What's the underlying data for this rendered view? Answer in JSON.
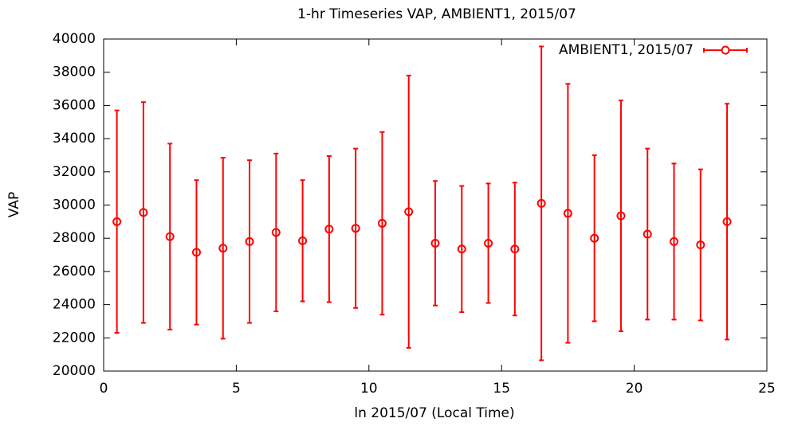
{
  "chart_data": {
    "type": "errorbar",
    "title": "1-hr Timeseries VAP, AMBIENT1, 2015/07",
    "x_label": "ln 2015/07 (Local Time)",
    "y_label": "VAP",
    "x": [
      0.5,
      1.5,
      2.5,
      3.5,
      4.5,
      5.5,
      6.5,
      7.5,
      8.5,
      9.5,
      10.5,
      11.5,
      12.5,
      13.5,
      14.5,
      15.5,
      16.5,
      17.5,
      18.5,
      19.5,
      20.5,
      21.5,
      22.5,
      23.5
    ],
    "series": [
      {
        "name": "AMBIENT1, 2015/07",
        "color": "#ff0000",
        "values": [
          29000,
          29550,
          28100,
          27150,
          27400,
          27800,
          28350,
          27850,
          28550,
          28600,
          28900,
          29600,
          27700,
          27350,
          27700,
          27350,
          30100,
          29500,
          28000,
          29350,
          28250,
          27800,
          27600,
          29000
        ],
        "errors": [
          6700,
          6650,
          5600,
          4350,
          5450,
          4900,
          4750,
          3650,
          4400,
          4800,
          5500,
          8200,
          3750,
          3800,
          3600,
          4000,
          9450,
          7800,
          5000,
          6950,
          5150,
          4700,
          4550,
          7100
        ]
      }
    ],
    "xlim": [
      0,
      25
    ],
    "xticks": [
      0,
      5,
      10,
      15,
      20,
      25
    ],
    "ylim": [
      20000,
      40000
    ],
    "yticks": [
      20000,
      22000,
      24000,
      26000,
      28000,
      30000,
      32000,
      34000,
      36000,
      38000,
      40000
    ],
    "legend": "top-right"
  }
}
